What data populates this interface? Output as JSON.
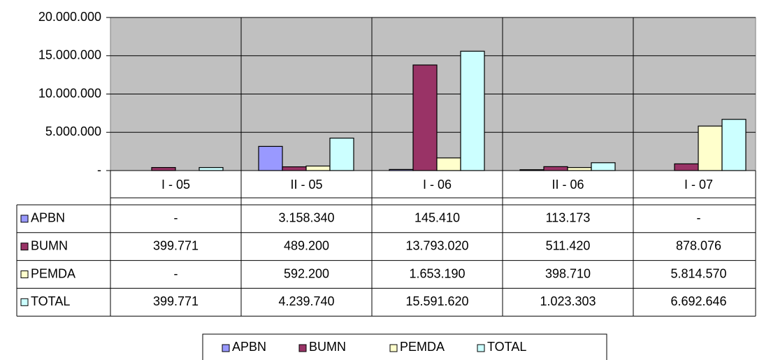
{
  "chart_data": {
    "type": "bar",
    "categories": [
      "I - 05",
      "II - 05",
      "I - 06",
      "II - 06",
      "I - 07"
    ],
    "series": [
      {
        "name": "APBN",
        "color": "#9999ff",
        "values": [
          0,
          3158340,
          145410,
          113173,
          0
        ],
        "value_labels": [
          "-",
          "3.158.340",
          "145.410",
          "113.173",
          "-"
        ]
      },
      {
        "name": "BUMN",
        "color": "#993366",
        "values": [
          399771,
          489200,
          13793020,
          511420,
          878076
        ],
        "value_labels": [
          "399.771",
          "489.200",
          "13.793.020",
          "511.420",
          "878.076"
        ]
      },
      {
        "name": "PEMDA",
        "color": "#ffffcc",
        "values": [
          0,
          592200,
          1653190,
          398710,
          5814570
        ],
        "value_labels": [
          "-",
          "592.200",
          "1.653.190",
          "398.710",
          "5.814.570"
        ]
      },
      {
        "name": "TOTAL",
        "color": "#ccffff",
        "values": [
          399771,
          4239740,
          15591620,
          1023303,
          6692646
        ],
        "value_labels": [
          "399.771",
          "4.239.740",
          "15.591.620",
          "1.023.303",
          "6.692.646"
        ]
      }
    ],
    "ylim": [
      0,
      20000000
    ],
    "yticks": [
      {
        "value": 0,
        "label": "-"
      },
      {
        "value": 5000000,
        "label": "5.000.000"
      },
      {
        "value": 10000000,
        "label": "10.000.000"
      },
      {
        "value": 15000000,
        "label": "15.000.000"
      },
      {
        "value": 20000000,
        "label": "20.000.000"
      }
    ],
    "grid": true,
    "legend": "bottom",
    "plot_background": "#c0c0c0"
  }
}
